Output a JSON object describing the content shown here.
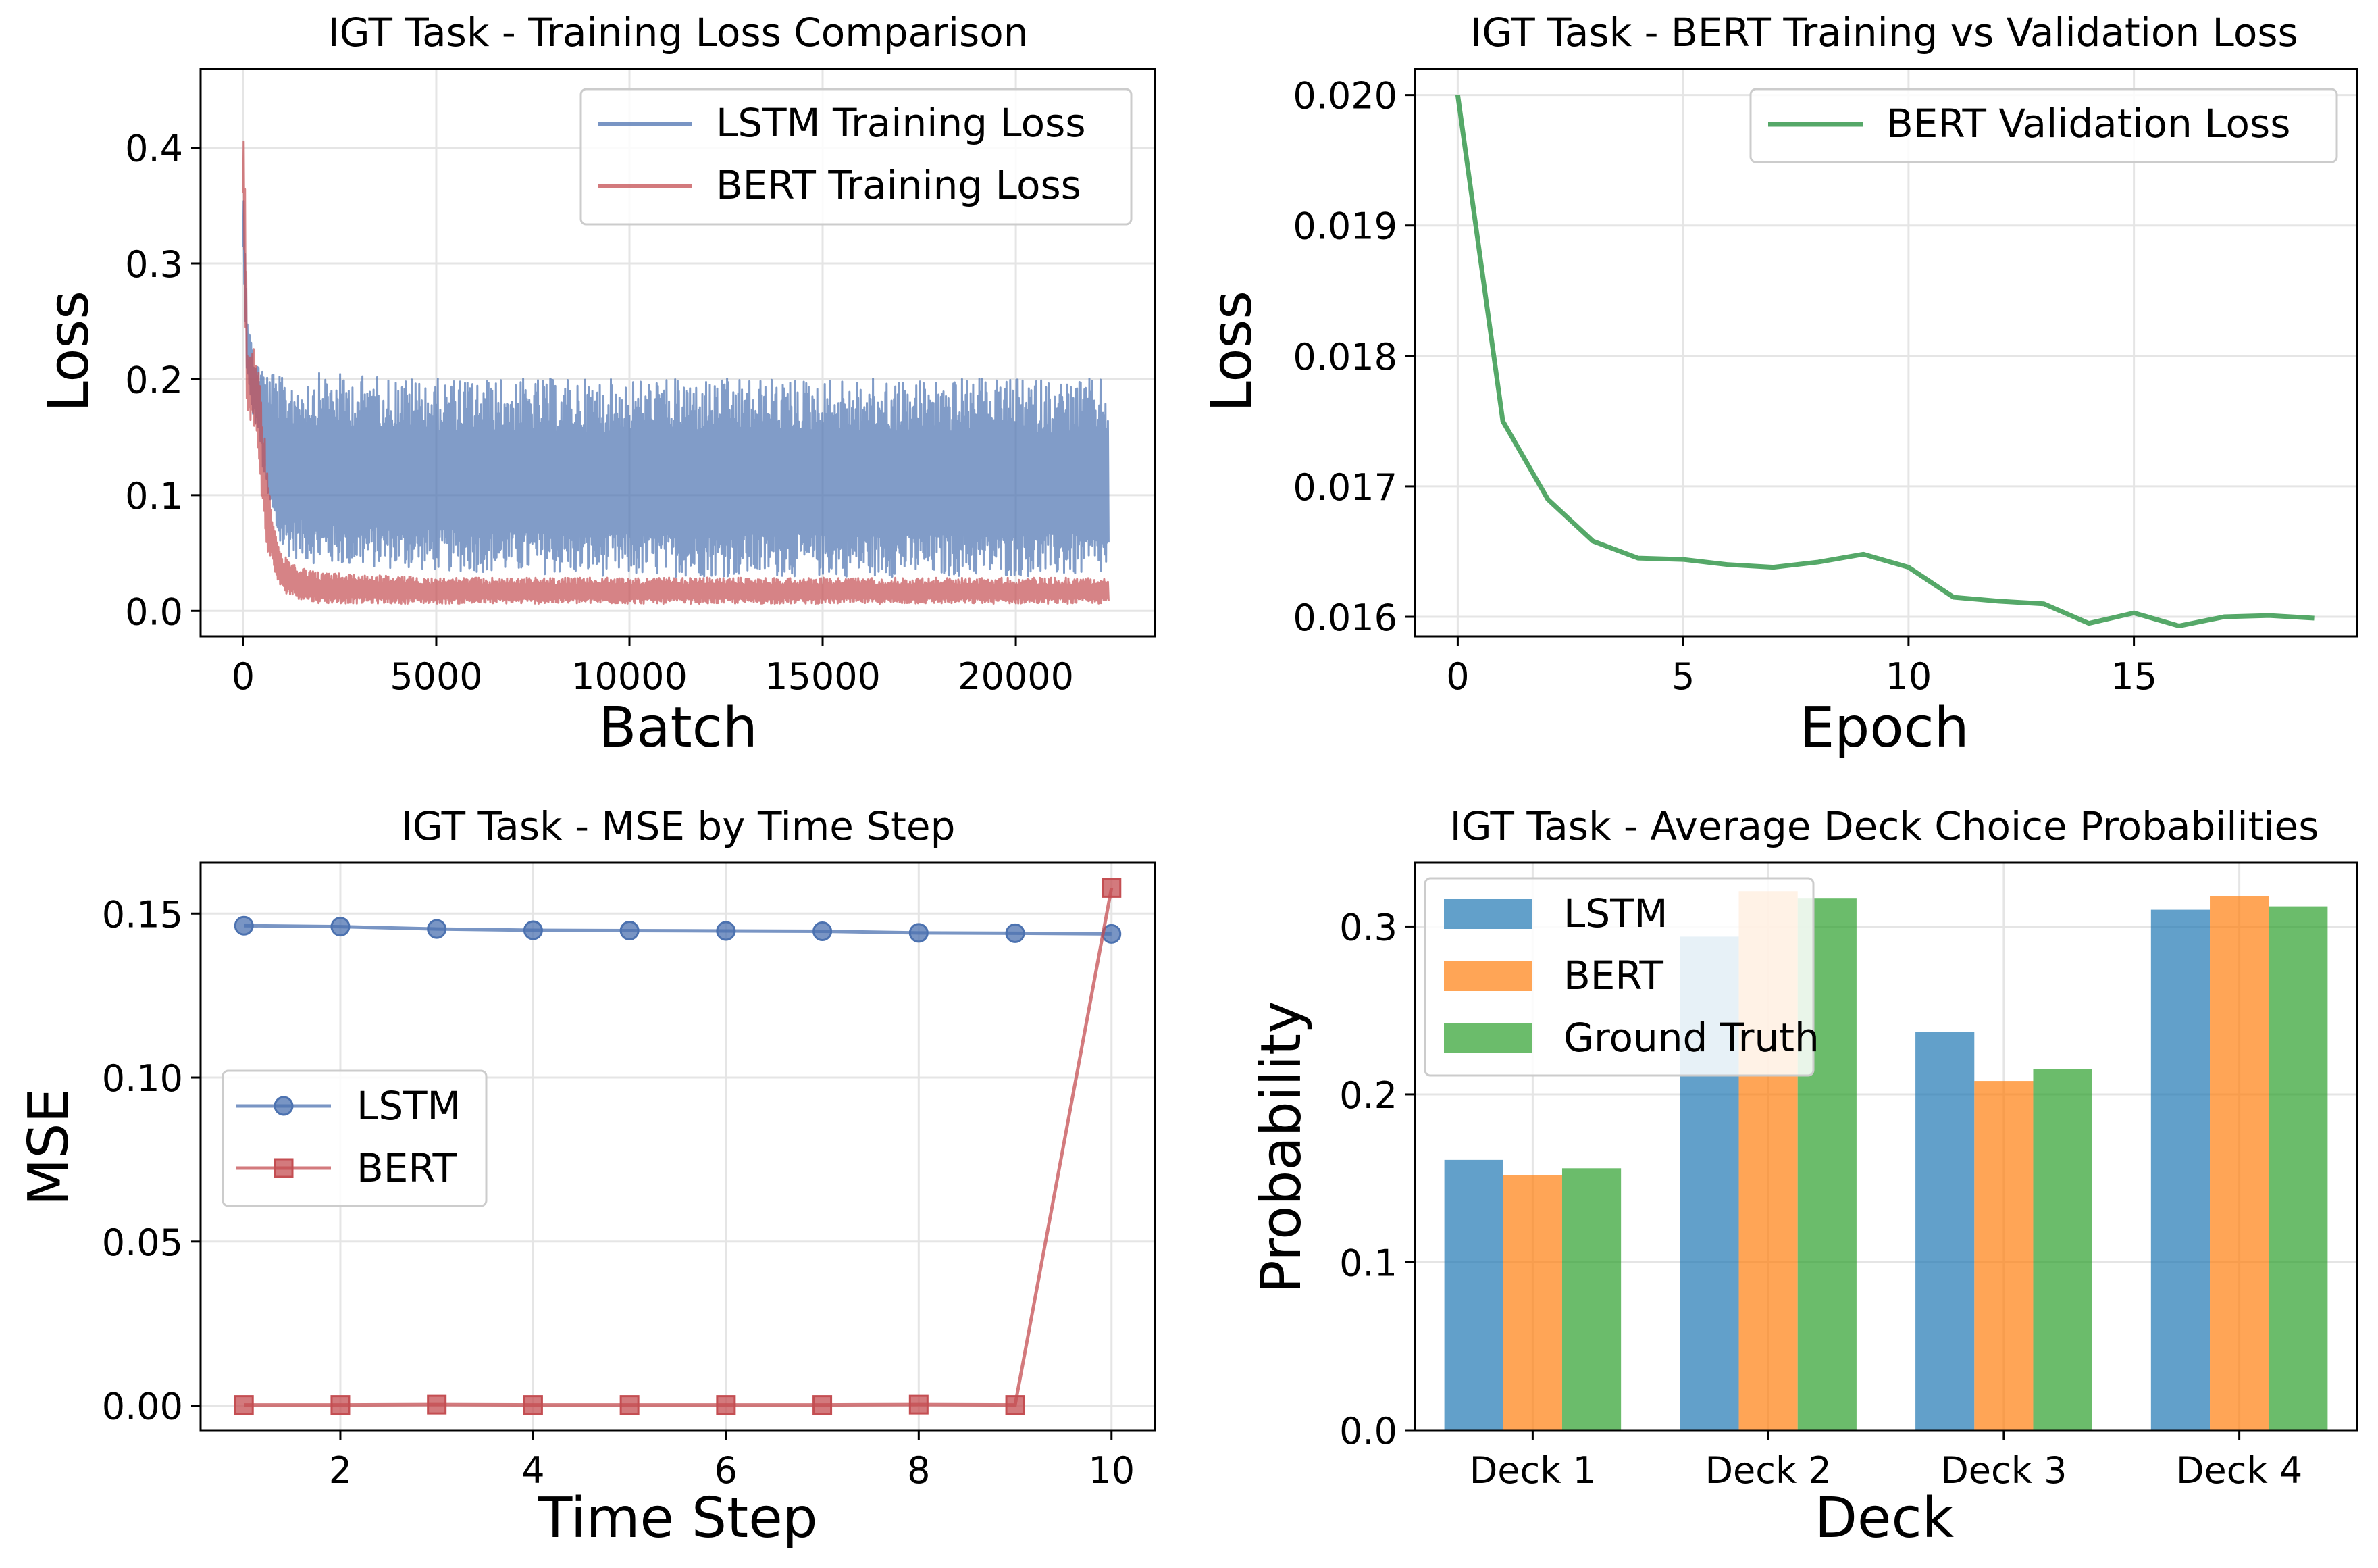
{
  "colors": {
    "lstm_line": "#4c72b0",
    "bert_line": "#c44e52",
    "val_line": "#55a868",
    "bar_lstm": "#1f77b4",
    "bar_bert": "#ff7f0e",
    "bar_gt": "#2ca02c",
    "grid": "#e5e5e5"
  },
  "chart_data": [
    {
      "id": "loss",
      "type": "line",
      "title": "IGT Task - Training Loss Comparison",
      "xlabel": "Batch",
      "ylabel": "Loss",
      "xlim": [
        -1100,
        23600
      ],
      "ylim": [
        -0.022,
        0.468
      ],
      "xticks": [
        0,
        5000,
        10000,
        15000,
        20000
      ],
      "xtick_labels": [
        "0",
        "5000",
        "10000",
        "15000",
        "20000"
      ],
      "yticks": [
        0.0,
        0.1,
        0.2,
        0.3,
        0.4
      ],
      "ytick_labels": [
        "0.0",
        "0.1",
        "0.2",
        "0.3",
        "0.4"
      ],
      "grid": true,
      "legend": "top-right",
      "series": [
        {
          "name": "LSTM Training Loss",
          "description": "noisy band between ~0.005 and ~0.21 over 0-22400 batches",
          "x": [
            0,
            50,
            100,
            200,
            300,
            400,
            500,
            600,
            800,
            1000,
            2000,
            5000,
            10000,
            15000,
            20000,
            22400
          ],
          "y_low": [
            0.3,
            0.25,
            0.2,
            0.17,
            0.16,
            0.15,
            0.12,
            0.09,
            0.06,
            0.04,
            0.03,
            0.025,
            0.02,
            0.02,
            0.02,
            0.02
          ],
          "y_high": [
            0.38,
            0.33,
            0.27,
            0.24,
            0.22,
            0.22,
            0.215,
            0.215,
            0.215,
            0.21,
            0.215,
            0.21,
            0.21,
            0.21,
            0.21,
            0.21
          ]
        },
        {
          "name": "BERT Training Loss",
          "description": "spikes to ~0.45 at start, drops to band ~0.005-0.03",
          "x": [
            0,
            50,
            100,
            200,
            300,
            400,
            500,
            600,
            800,
            1000,
            1500,
            2000,
            5000,
            10000,
            15000,
            20000,
            22400
          ],
          "y_low": [
            0.35,
            0.25,
            0.17,
            0.16,
            0.15,
            0.13,
            0.08,
            0.05,
            0.03,
            0.015,
            0.008,
            0.005,
            0.005,
            0.005,
            0.005,
            0.005,
            0.005
          ],
          "y_high": [
            0.45,
            0.4,
            0.24,
            0.235,
            0.23,
            0.21,
            0.18,
            0.14,
            0.08,
            0.05,
            0.04,
            0.035,
            0.03,
            0.03,
            0.03,
            0.03,
            0.03
          ]
        }
      ]
    },
    {
      "id": "val",
      "type": "line",
      "title": "IGT Task - BERT Training vs Validation Loss",
      "xlabel": "Epoch",
      "ylabel": "Loss",
      "xlim": [
        -0.95,
        19.95
      ],
      "ylim": [
        0.01585,
        0.0202
      ],
      "xticks": [
        0,
        5,
        10,
        15
      ],
      "xtick_labels": [
        "0",
        "5",
        "10",
        "15"
      ],
      "yticks": [
        0.016,
        0.017,
        0.018,
        0.019,
        0.02
      ],
      "ytick_labels": [
        "0.016",
        "0.017",
        "0.018",
        "0.019",
        "0.020"
      ],
      "grid": true,
      "legend": "top-right",
      "series": [
        {
          "name": "BERT Validation Loss",
          "x": [
            0,
            1,
            2,
            3,
            4,
            5,
            6,
            7,
            8,
            9,
            10,
            11,
            12,
            13,
            14,
            15,
            16,
            17,
            18,
            19
          ],
          "y": [
            0.02,
            0.0175,
            0.0169,
            0.01658,
            0.01645,
            0.01644,
            0.0164,
            0.01638,
            0.01642,
            0.01648,
            0.01638,
            0.01615,
            0.01612,
            0.0161,
            0.01595,
            0.01603,
            0.01593,
            0.016,
            0.01601,
            0.01599
          ]
        }
      ]
    },
    {
      "id": "mse",
      "type": "line",
      "title": "IGT Task - MSE by Time Step",
      "xlabel": "Time Step",
      "ylabel": "MSE",
      "xlim": [
        0.55,
        10.45
      ],
      "ylim": [
        -0.0075,
        0.1655
      ],
      "xticks": [
        2,
        4,
        6,
        8,
        10
      ],
      "xtick_labels": [
        "2",
        "4",
        "6",
        "8",
        "10"
      ],
      "yticks": [
        0.0,
        0.05,
        0.1,
        0.15
      ],
      "ytick_labels": [
        "0.00",
        "0.05",
        "0.10",
        "0.15"
      ],
      "grid": true,
      "legend": "center-left",
      "series": [
        {
          "name": "LSTM",
          "marker": "circle",
          "x": [
            1,
            2,
            3,
            4,
            5,
            6,
            7,
            8,
            9,
            10
          ],
          "y": [
            0.1463,
            0.146,
            0.1453,
            0.1449,
            0.1448,
            0.1447,
            0.1446,
            0.1441,
            0.144,
            0.1438
          ]
        },
        {
          "name": "BERT",
          "marker": "square",
          "x": [
            1,
            2,
            3,
            4,
            5,
            6,
            7,
            8,
            9,
            10
          ],
          "y": [
            0.0002,
            0.0002,
            0.0003,
            0.0002,
            0.0002,
            0.0002,
            0.0002,
            0.0003,
            0.0002,
            0.1578
          ]
        }
      ]
    },
    {
      "id": "bars",
      "type": "bar",
      "title": "IGT Task - Average Deck Choice Probabilities",
      "xlabel": "Deck",
      "ylabel": "Probability",
      "categories": [
        "Deck 1",
        "Deck 2",
        "Deck 3",
        "Deck 4"
      ],
      "ylim": [
        0.0,
        0.338
      ],
      "yticks": [
        0.0,
        0.1,
        0.2,
        0.3
      ],
      "ytick_labels": [
        "0.0",
        "0.1",
        "0.2",
        "0.3"
      ],
      "grid": true,
      "legend": "top-left",
      "series": [
        {
          "name": "LSTM",
          "values": [
            0.161,
            0.294,
            0.237,
            0.31
          ]
        },
        {
          "name": "BERT",
          "values": [
            0.152,
            0.321,
            0.208,
            0.318
          ]
        },
        {
          "name": "Ground Truth",
          "values": [
            0.156,
            0.317,
            0.215,
            0.312
          ]
        }
      ]
    }
  ]
}
